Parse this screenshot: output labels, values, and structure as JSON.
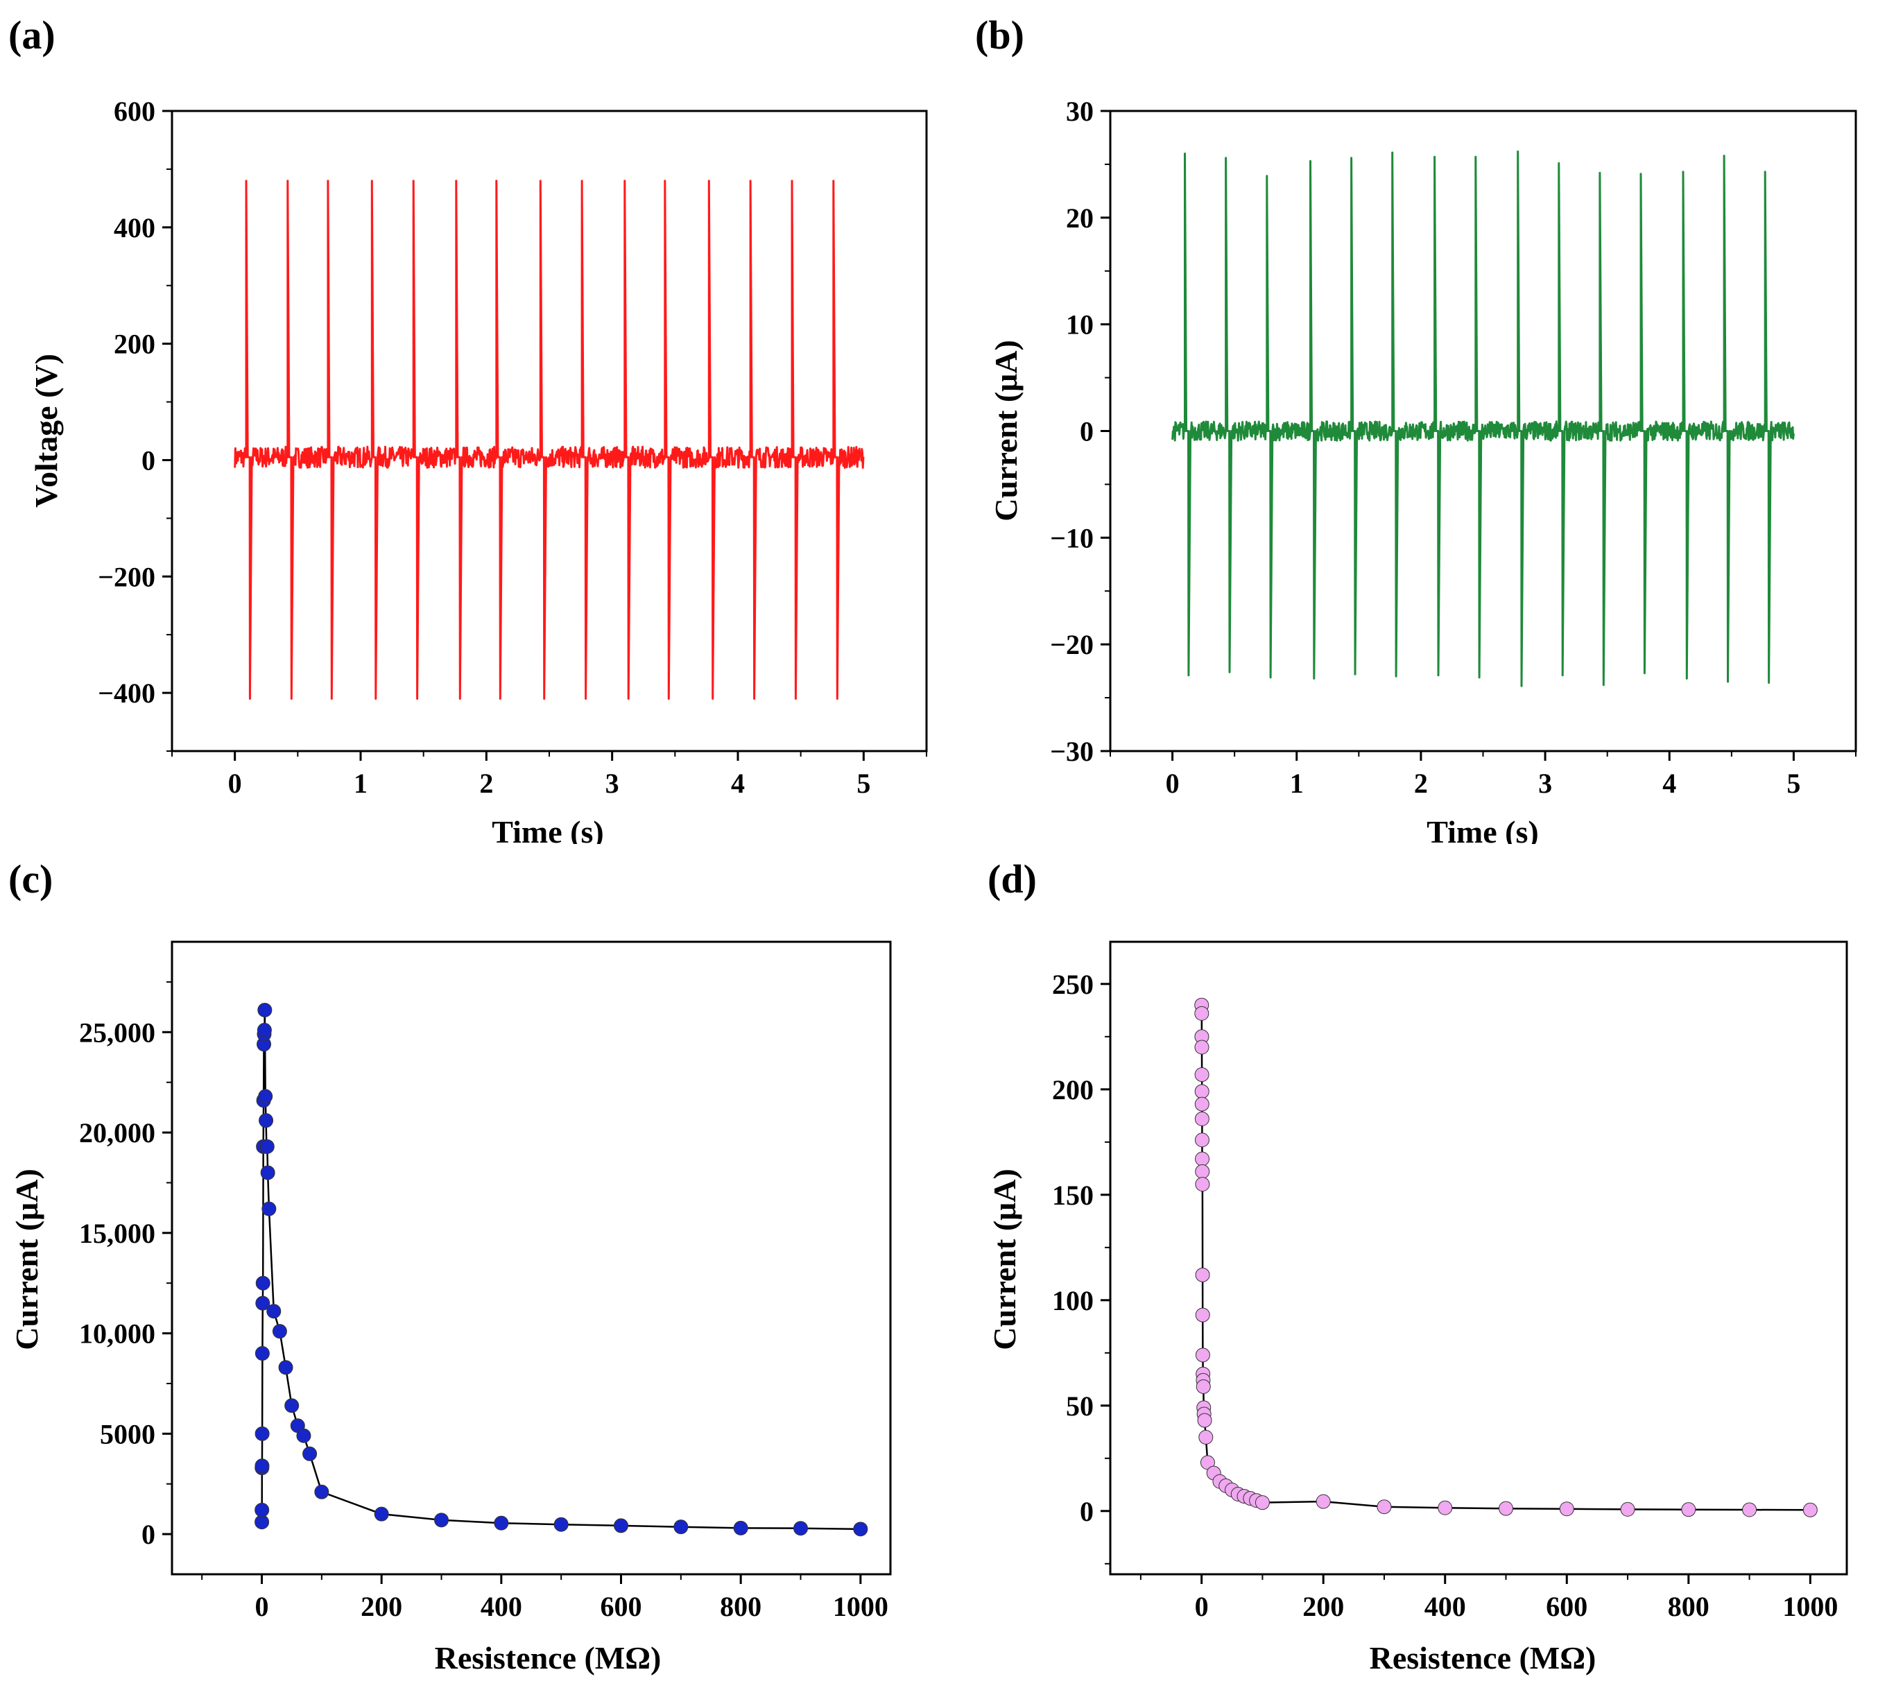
{
  "chart_data": [
    {
      "id": "a",
      "panel_label": "(a)",
      "type": "line",
      "title": "",
      "xlabel": "Time (s)",
      "ylabel": "Voltage (V)",
      "xlim": [
        -0.5,
        5.5
      ],
      "ylim": [
        -500,
        600
      ],
      "xticks": [
        0,
        1,
        2,
        3,
        4,
        5
      ],
      "xtick_labels": [
        "0",
        "1",
        "2",
        "3",
        "4",
        "5"
      ],
      "yticks": [
        -400,
        -200,
        0,
        200,
        400,
        600
      ],
      "ytick_labels": [
        "−400",
        "−200",
        "0",
        "200",
        "400",
        "600"
      ],
      "color": "#ff1a1a",
      "series": [
        {
          "name": "Voltage",
          "pulse_times": [
            0.09,
            0.42,
            0.74,
            1.09,
            1.42,
            1.76,
            2.08,
            2.43,
            2.76,
            3.1,
            3.42,
            3.77,
            4.1,
            4.43,
            4.76
          ],
          "pulse_max": [
            480,
            480,
            480,
            480,
            480,
            480,
            480,
            480,
            480,
            480,
            480,
            480,
            480,
            480,
            480
          ],
          "pulse_min": [
            -410,
            -410,
            -410,
            -410,
            -410,
            -410,
            -410,
            -410,
            -410,
            -410,
            -410,
            -410,
            -410,
            -410,
            -410
          ],
          "baseline": 5,
          "noise_amplitude": 18,
          "t_start": 0.0,
          "t_end": 5.0
        }
      ]
    },
    {
      "id": "b",
      "panel_label": "(b)",
      "type": "line",
      "title": "",
      "xlabel": "Time (s)",
      "ylabel": "Current (μA)",
      "xlim": [
        -0.5,
        5.5
      ],
      "ylim": [
        -30,
        30
      ],
      "xticks": [
        0,
        1,
        2,
        3,
        4,
        5
      ],
      "xtick_labels": [
        "0",
        "1",
        "2",
        "3",
        "4",
        "5"
      ],
      "yticks": [
        -30,
        -20,
        -10,
        0,
        10,
        20,
        30
      ],
      "ytick_labels": [
        "−30",
        "−20",
        "−10",
        "0",
        "10",
        "20",
        "30"
      ],
      "color": "#1f8a3a",
      "series": [
        {
          "name": "Current",
          "pulse_times": [
            0.1,
            0.43,
            0.76,
            1.11,
            1.44,
            1.77,
            2.11,
            2.44,
            2.78,
            3.11,
            3.44,
            3.77,
            4.11,
            4.44,
            4.77
          ],
          "pulse_max": [
            26,
            25.6,
            23.9,
            25.3,
            25.6,
            26.1,
            25.7,
            25.7,
            26.2,
            25.1,
            24.2,
            24.1,
            24.3,
            25.8,
            24.3
          ],
          "pulse_min": [
            -22.9,
            -22.6,
            -23.1,
            -23.2,
            -22.8,
            -23,
            -22.9,
            -23.1,
            -23.9,
            -22.9,
            -23.8,
            -22.7,
            -23.2,
            -23.5,
            -23.6
          ],
          "baseline": 0,
          "noise_amplitude": 0.9,
          "t_start": 0.0,
          "t_end": 5.0
        }
      ]
    },
    {
      "id": "c",
      "panel_label": "(c)",
      "type": "scatter",
      "title": "",
      "xlabel": "Resistence (MΩ)",
      "ylabel": "Current (μA)",
      "xlim": [
        -150,
        1050
      ],
      "ylim": [
        -2000,
        29500
      ],
      "xticks": [
        0,
        200,
        400,
        600,
        800,
        1000
      ],
      "xtick_labels": [
        "0",
        "200",
        "400",
        "600",
        "800",
        "1000"
      ],
      "yticks": [
        0,
        5000,
        10000,
        15000,
        20000,
        25000
      ],
      "ytick_labels": [
        "0",
        "5000",
        "10,000",
        "15,000",
        "20,000",
        "25,000"
      ],
      "color": "#1726c8",
      "series": [
        {
          "name": "Current",
          "x": [
            0.1,
            0.2,
            0.3,
            0.5,
            0.7,
            1,
            1.5,
            2,
            2.5,
            3,
            3.5,
            4,
            4.5,
            5,
            6,
            7,
            8,
            9,
            10,
            12,
            20,
            30,
            40,
            50,
            60,
            70,
            80,
            100,
            200,
            300,
            400,
            500,
            600,
            700,
            800,
            900,
            1000
          ],
          "y": [
            600,
            1200,
            3300,
            3400,
            5000,
            9000,
            11500,
            12500,
            19300,
            21600,
            24400,
            24900,
            25100,
            26100,
            21800,
            20600,
            19300,
            19300,
            18000,
            16200,
            11100,
            10100,
            8300,
            6400,
            5400,
            4900,
            4000,
            2100,
            1000,
            700,
            550,
            480,
            420,
            360,
            300,
            290,
            250
          ]
        }
      ]
    },
    {
      "id": "d",
      "panel_label": "(d)",
      "type": "scatter",
      "title": "",
      "xlabel": "Resistence (MΩ)",
      "ylabel": "Current (μA)",
      "xlim": [
        -150,
        1060
      ],
      "ylim": [
        -30,
        270
      ],
      "xticks": [
        0,
        200,
        400,
        600,
        800,
        1000
      ],
      "xtick_labels": [
        "0",
        "200",
        "400",
        "600",
        "800",
        "1000"
      ],
      "yticks": [
        0,
        50,
        100,
        150,
        200,
        250
      ],
      "ytick_labels": [
        "0",
        "50",
        "100",
        "150",
        "200",
        "250"
      ],
      "color": "#f0a8f0",
      "series": [
        {
          "name": "Current",
          "x": [
            0.1,
            0.2,
            0.3,
            0.4,
            0.5,
            0.6,
            0.7,
            0.8,
            0.9,
            1,
            1.2,
            1.4,
            1.6,
            1.8,
            2,
            2.3,
            2.6,
            3,
            3.5,
            4,
            5,
            7,
            10,
            20,
            30,
            40,
            50,
            60,
            70,
            80,
            90,
            100,
            200,
            300,
            400,
            500,
            600,
            700,
            800,
            900,
            1000
          ],
          "y": [
            240,
            236,
            225,
            220,
            207,
            199,
            193,
            186,
            176,
            167,
            161,
            155,
            112,
            93,
            74,
            65,
            62,
            59,
            49,
            46,
            43,
            35,
            23,
            18,
            14,
            12,
            10,
            8,
            7,
            6,
            5,
            4,
            4.5,
            2,
            1.5,
            1.2,
            1,
            0.8,
            0.7,
            0.6,
            0.5
          ]
        }
      ]
    }
  ]
}
